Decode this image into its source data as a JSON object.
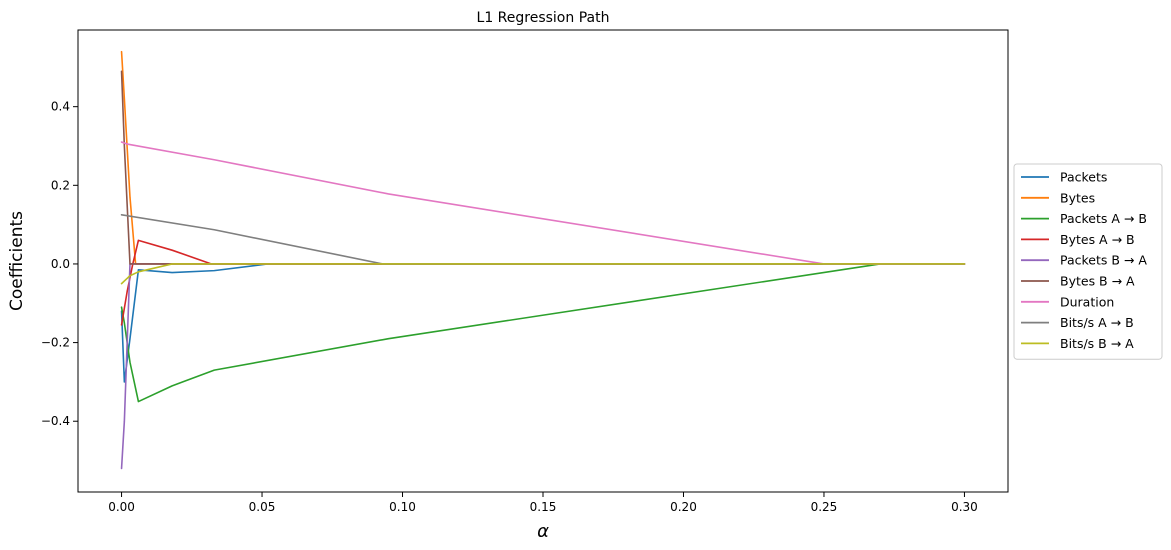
{
  "chart_data": {
    "type": "line",
    "title": "L1 Regression Path",
    "xlabel": "α",
    "ylabel": "Coefficients",
    "xlim": [
      -0.0155,
      0.3155
    ],
    "ylim": [
      -0.58,
      0.595
    ],
    "xticks": [
      0.0,
      0.05,
      0.1,
      0.15,
      0.2,
      0.25,
      0.3
    ],
    "xtick_labels": [
      "0.00",
      "0.05",
      "0.10",
      "0.15",
      "0.20",
      "0.25",
      "0.30"
    ],
    "yticks": [
      -0.4,
      -0.2,
      0.0,
      0.2,
      0.4
    ],
    "ytick_labels": [
      "−0.4",
      "−0.2",
      "0.0",
      "0.2",
      "0.4"
    ],
    "grid": false,
    "legend_position": "outside-right",
    "series": [
      {
        "name": "Packets",
        "color": "#1f77b4",
        "x": [
          0.0,
          0.001,
          0.003,
          0.006,
          0.018,
          0.033,
          0.052,
          0.3
        ],
        "y": [
          -0.12,
          -0.3,
          -0.19,
          -0.015,
          -0.022,
          -0.017,
          0.0,
          0.0
        ]
      },
      {
        "name": "Bytes",
        "color": "#ff7f0e",
        "x": [
          0.0,
          0.001,
          0.003,
          0.005,
          0.3
        ],
        "y": [
          0.54,
          0.42,
          0.17,
          0.0,
          0.0
        ]
      },
      {
        "name": "Packets A → B",
        "color": "#2ca02c",
        "x": [
          0.0,
          0.001,
          0.003,
          0.006,
          0.018,
          0.033,
          0.095,
          0.27,
          0.3
        ],
        "y": [
          -0.11,
          -0.15,
          -0.25,
          -0.35,
          -0.31,
          -0.27,
          -0.19,
          0.0,
          0.0
        ]
      },
      {
        "name": "Bytes A → B",
        "color": "#d62728",
        "x": [
          0.0,
          0.002,
          0.004,
          0.006,
          0.018,
          0.032,
          0.3
        ],
        "y": [
          -0.155,
          -0.07,
          0.0,
          0.06,
          0.035,
          0.0,
          0.0
        ]
      },
      {
        "name": "Packets B → A",
        "color": "#9467bd",
        "x": [
          0.0,
          0.001,
          0.003,
          0.3
        ],
        "y": [
          -0.52,
          -0.4,
          0.0,
          0.0
        ]
      },
      {
        "name": "Bytes B → A",
        "color": "#8c564b",
        "x": [
          0.0,
          0.001,
          0.003,
          0.3
        ],
        "y": [
          0.49,
          0.3,
          0.0,
          0.0
        ]
      },
      {
        "name": "Duration",
        "color": "#e377c2",
        "x": [
          0.0,
          0.002,
          0.033,
          0.095,
          0.25,
          0.3
        ],
        "y": [
          0.31,
          0.305,
          0.265,
          0.178,
          0.0,
          0.0
        ]
      },
      {
        "name": "Bits/s A → B",
        "color": "#7f7f7f",
        "x": [
          0.0,
          0.033,
          0.093,
          0.3
        ],
        "y": [
          0.125,
          0.087,
          0.0,
          0.0
        ]
      },
      {
        "name": "Bits/s B → A",
        "color": "#bcbd22",
        "x": [
          0.0,
          0.003,
          0.006,
          0.018,
          0.3
        ],
        "y": [
          -0.05,
          -0.03,
          -0.02,
          0.0,
          0.0
        ]
      }
    ]
  }
}
